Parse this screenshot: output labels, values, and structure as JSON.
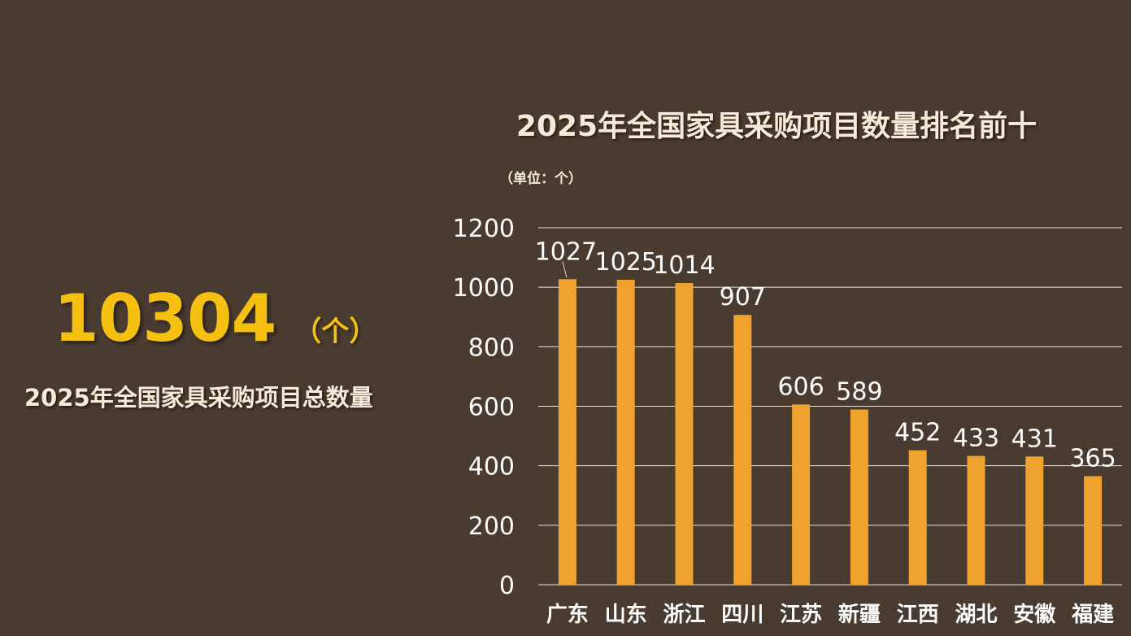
{
  "summary": {
    "total_value": "10304",
    "total_unit": "（个）",
    "caption": "2025年全国家具采购项目总数量"
  },
  "chart_data": {
    "type": "bar",
    "title": "2025年全国家具采购项目数量排名前十",
    "unit_note": "（单位：个）",
    "categories": [
      "广东",
      "山东",
      "浙江",
      "四川",
      "江苏",
      "新疆",
      "江西",
      "湖北",
      "安徽",
      "福建"
    ],
    "values": [
      1027,
      1025,
      1014,
      907,
      606,
      589,
      452,
      433,
      431,
      365
    ],
    "ylim": [
      0,
      1200
    ],
    "yticks": [
      0,
      200,
      400,
      600,
      800,
      1000,
      1200
    ],
    "grid": true,
    "legend": "none",
    "bar_color": "#f0a22e",
    "grid_color": "#e8e2da"
  },
  "colors": {
    "background": "#4a3b30",
    "highlight": "#f5c010",
    "text": "#f6ead8"
  }
}
